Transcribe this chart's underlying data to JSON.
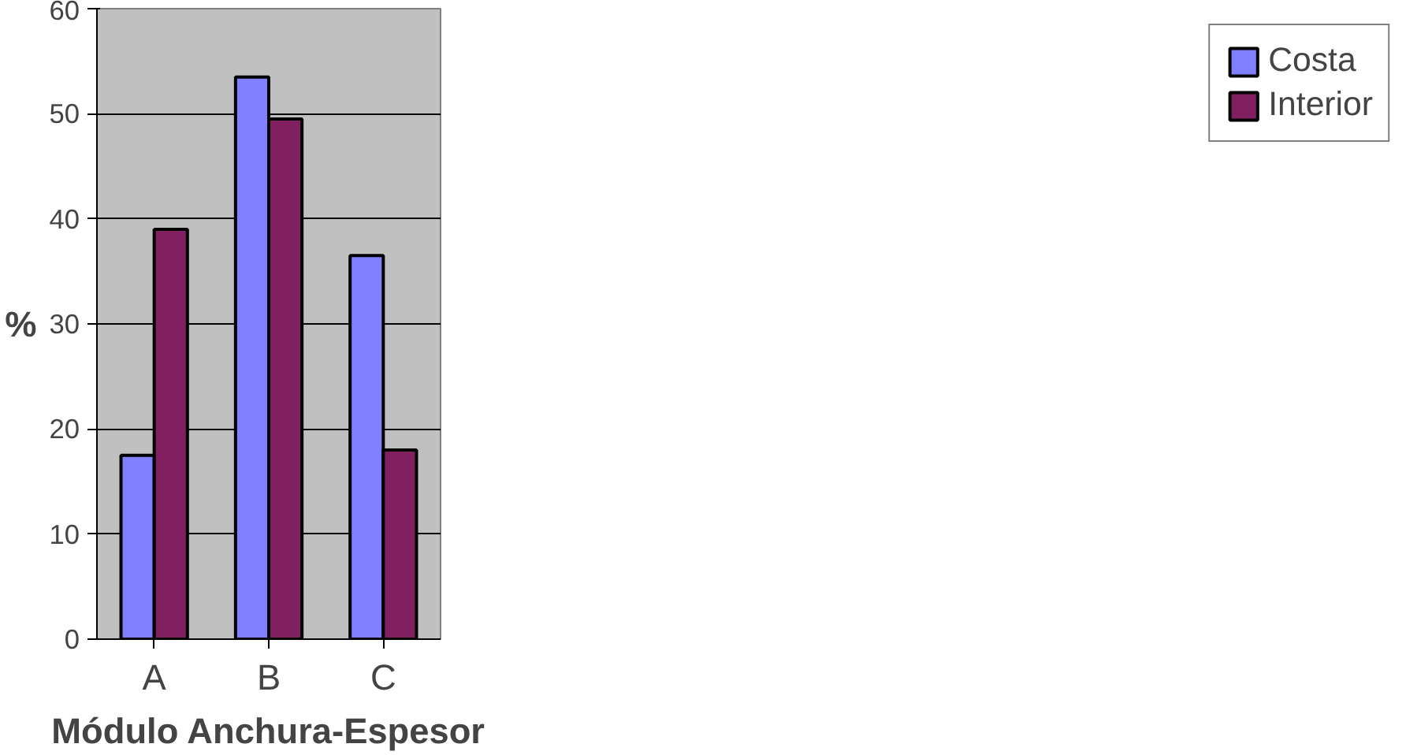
{
  "chart_data": {
    "type": "bar",
    "xlabel": "Módulo Anchura-Espesor",
    "ylabel": "%",
    "categories": [
      "A",
      "B",
      "C"
    ],
    "series": [
      {
        "name": "Costa",
        "color": "#8080ff",
        "values": [
          17.5,
          53.5,
          36.5
        ]
      },
      {
        "name": "Interior",
        "color": "#802060",
        "values": [
          39,
          49.5,
          18
        ]
      }
    ],
    "ylim": [
      0,
      60
    ],
    "yticks": [
      0,
      10,
      20,
      30,
      40,
      50,
      60
    ],
    "grid": "y",
    "legend": "right"
  }
}
